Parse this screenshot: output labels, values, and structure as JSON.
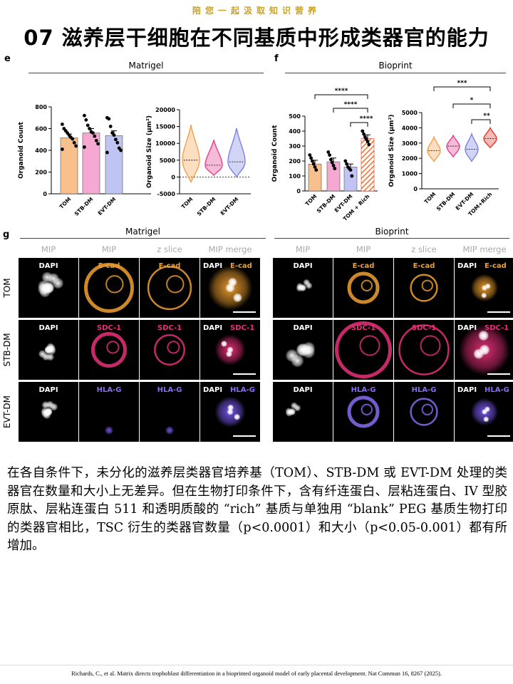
{
  "banner": "陪您一起汲取知识营养",
  "title": "07 滋养层干细胞在不同基质中形成类器官的能力",
  "panels": {
    "e": "e",
    "f": "f",
    "g": "g",
    "matrigel": "Matrigel",
    "bioprint": "Bioprint"
  },
  "chart_data": [
    {
      "type": "bar",
      "panel": "e",
      "title": "Matrigel",
      "ylabel": "Organoid Count",
      "ylim": [
        0,
        800
      ],
      "yticks": [
        0,
        200,
        400,
        600,
        800
      ],
      "categories": [
        "TOM",
        "STB-DM",
        "EVT-DM"
      ],
      "values": [
        515,
        560,
        535
      ],
      "errors": [
        35,
        40,
        45
      ],
      "colors": [
        "#f8c08c",
        "#f4a8d2",
        "#bfc4f2"
      ],
      "points": [
        [
          640,
          600,
          580,
          560,
          540,
          520,
          505,
          470,
          440,
          410
        ],
        [
          720,
          680,
          630,
          600,
          570,
          560,
          530,
          490,
          460,
          430
        ],
        [
          700,
          690,
          620,
          560,
          540,
          500,
          470,
          420,
          400,
          380
        ]
      ]
    },
    {
      "type": "violin",
      "panel": "e",
      "ylabel": "Organoid Size (µm²)",
      "ylim": [
        -5000,
        20000
      ],
      "yticks": [
        -5000,
        0,
        5000,
        10000,
        15000,
        20000
      ],
      "categories": [
        "TOM",
        "STB-DM",
        "EVT-DM"
      ],
      "medians": [
        5000,
        3500,
        4500
      ],
      "ranges": [
        [
          -1500,
          15500
        ],
        [
          500,
          11000
        ],
        [
          0,
          14500
        ]
      ],
      "colors": [
        "#f5a04a",
        "#e63c8c",
        "#7b83e0"
      ]
    },
    {
      "type": "bar",
      "panel": "f",
      "title": "Bioprint",
      "ylabel": "Organoid Count",
      "ylim": [
        0,
        500
      ],
      "yticks": [
        0,
        100,
        200,
        300,
        400,
        500
      ],
      "categories": [
        "TOM",
        "STB-DM",
        "EVT-DM",
        "TOM + Rich"
      ],
      "values": [
        180,
        195,
        160,
        350
      ],
      "errors": [
        25,
        25,
        20,
        25
      ],
      "colors": [
        "#f8c08c",
        "#f4a8d2",
        "#bfc4f2",
        "#ff7a45"
      ],
      "points": [
        [
          240,
          220,
          200,
          180,
          160,
          140
        ],
        [
          260,
          240,
          210,
          190,
          170,
          150
        ],
        [
          200,
          180,
          160,
          150,
          140,
          100
        ],
        [
          400,
          380,
          360,
          345,
          330,
          310
        ]
      ],
      "significance": [
        "****",
        "****",
        "****"
      ]
    },
    {
      "type": "violin",
      "panel": "f",
      "ylabel": "Organoid Size (µm²)",
      "ylim": [
        0,
        5000
      ],
      "yticks": [
        0,
        1000,
        2000,
        3000,
        4000,
        5000
      ],
      "categories": [
        "TOM",
        "STB-DM",
        "EVT-DM",
        "TOM+Rich"
      ],
      "medians": [
        2500,
        2800,
        2600,
        3300
      ],
      "ranges": [
        [
          1800,
          3400
        ],
        [
          2100,
          3500
        ],
        [
          1800,
          3600
        ],
        [
          2700,
          4000
        ]
      ],
      "colors": [
        "#f5a04a",
        "#e63c8c",
        "#7b83e0",
        "#e8362a"
      ],
      "significance": [
        "***",
        "*",
        "**"
      ]
    }
  ],
  "microscopy": {
    "col_headers": [
      "MIP",
      "MIP",
      "z slice",
      "MIP merge"
    ],
    "rows": [
      {
        "label": "TOM",
        "marker": "E-cad",
        "marker_color": "#f0a030",
        "dapi": "DAPI"
      },
      {
        "label": "STB-DM",
        "marker": "SDC-1",
        "marker_color": "#e8307a",
        "dapi": "DAPI"
      },
      {
        "label": "EVT-DM",
        "marker": "HLA-G",
        "marker_color": "#8a6cf0",
        "dapi": "DAPI"
      }
    ]
  },
  "caption": "在各自条件下，未分化的滋养层类器官培养基（TOM）、STB-DM 或 EVT-DM 处理的类器官在数量和大小上无差异。但在生物打印条件下，含有纤连蛋白、层粘连蛋白、IV 型胶原肽、层粘连蛋白 511 和透明质酸的 “rich” 基质与单独用 “blank” PEG 基质生物打印的类器官相比，TSC 衍生的类器官数量（p<0.0001）和大小（p<0.05-0.001）都有所增加。",
  "footer": "Richards, C., et al. Matrix directs trophoblast differentiation in a bioprinted organoid model of early placental development. Nat Commun 16, 8267 (2025)."
}
